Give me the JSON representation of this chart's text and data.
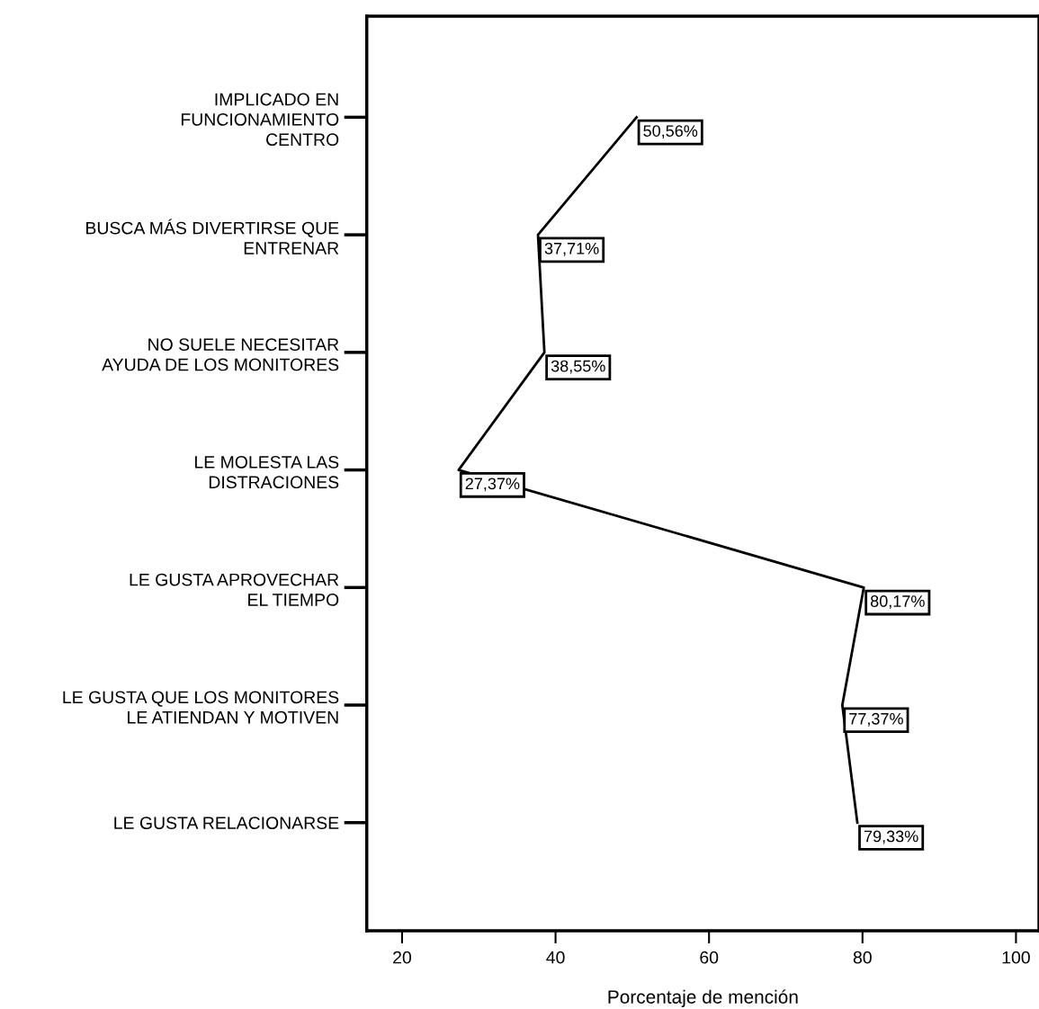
{
  "chart_data": {
    "type": "line",
    "orientation": "horizontal",
    "xlabel": "Porcentaje de mención",
    "categories": [
      "IMPLICADO EN\nFUNCIONAMIENTO\nCENTRO",
      "BUSCA MÁS DIVERTIRSE QUE\nENTRENAR",
      "NO SUELE NECESITAR\nAYUDA DE LOS MONITORES",
      "LE MOLESTA LAS\nDISTRACIONES",
      "LE GUSTA APROVECHAR\nEL TIEMPO",
      "LE GUSTA QUE LOS MONITORES\nLE ATIENDAN Y MOTIVEN",
      "LE GUSTA RELACIONARSE"
    ],
    "values": [
      50.56,
      37.71,
      38.55,
      27.37,
      80.17,
      77.37,
      79.33
    ],
    "value_labels": [
      "50,56%",
      "37,71%",
      "38,55%",
      "27,37%",
      "80,17%",
      "77,37%",
      "79,33%"
    ],
    "color": "#000000",
    "xlim": [
      15.4,
      103
    ],
    "xticks": [
      20,
      40,
      60,
      80,
      100
    ],
    "grid": false,
    "marker": "none",
    "line_style": "solid",
    "legend": false
  }
}
